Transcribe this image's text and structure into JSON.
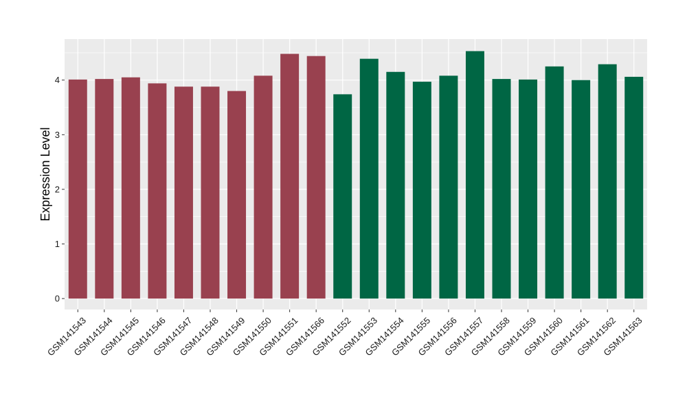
{
  "chart_data": {
    "type": "bar",
    "title": "",
    "xlabel": "",
    "ylabel": "Expression Level",
    "ylim": [
      -0.2,
      4.75
    ],
    "yticks": [
      0,
      1,
      2,
      3,
      4
    ],
    "grid": true,
    "legend": "none",
    "categories": [
      "GSM141543",
      "GSM141544",
      "GSM141545",
      "GSM141546",
      "GSM141547",
      "GSM141548",
      "GSM141549",
      "GSM141550",
      "GSM141551",
      "GSM141566",
      "GSM141552",
      "GSM141553",
      "GSM141554",
      "GSM141555",
      "GSM141556",
      "GSM141557",
      "GSM141558",
      "GSM141559",
      "GSM141560",
      "GSM141561",
      "GSM141562",
      "GSM141563"
    ],
    "values": [
      4.01,
      4.02,
      4.05,
      3.94,
      3.88,
      3.88,
      3.8,
      4.08,
      4.48,
      4.44,
      3.74,
      4.39,
      4.15,
      3.97,
      4.08,
      4.53,
      4.02,
      4.01,
      4.25,
      4.0,
      4.29,
      4.06
    ],
    "groups": [
      "group1",
      "group1",
      "group1",
      "group1",
      "group1",
      "group1",
      "group1",
      "group1",
      "group1",
      "group1",
      "group2",
      "group2",
      "group2",
      "group2",
      "group2",
      "group2",
      "group2",
      "group2",
      "group2",
      "group2",
      "group2",
      "group2"
    ],
    "colors": {
      "group1": "#99414f",
      "group2": "#006644",
      "panel": "#ebebeb",
      "grid": "#ffffff"
    }
  }
}
